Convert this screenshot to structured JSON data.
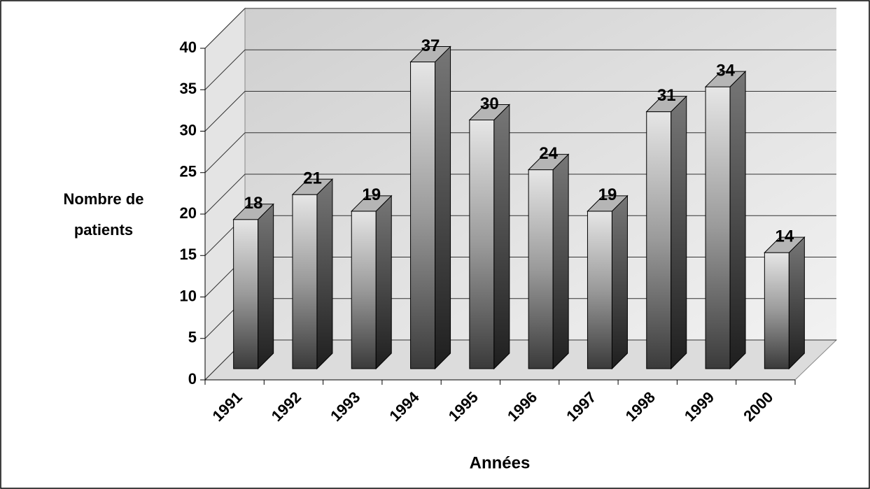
{
  "chart_data": {
    "type": "bar3d",
    "y_label": [
      "Nombre de",
      "patients"
    ],
    "x_label": "Années",
    "categories": [
      "1991",
      "1992",
      "1993",
      "1994",
      "1995",
      "1996",
      "1997",
      "1998",
      "1999",
      "2000"
    ],
    "values": [
      18,
      21,
      19,
      37,
      30,
      24,
      19,
      31,
      34,
      14
    ],
    "ylim": [
      0,
      40
    ],
    "yticks": [
      0,
      5,
      10,
      15,
      20,
      25,
      30,
      35,
      40
    ],
    "grid": true
  }
}
